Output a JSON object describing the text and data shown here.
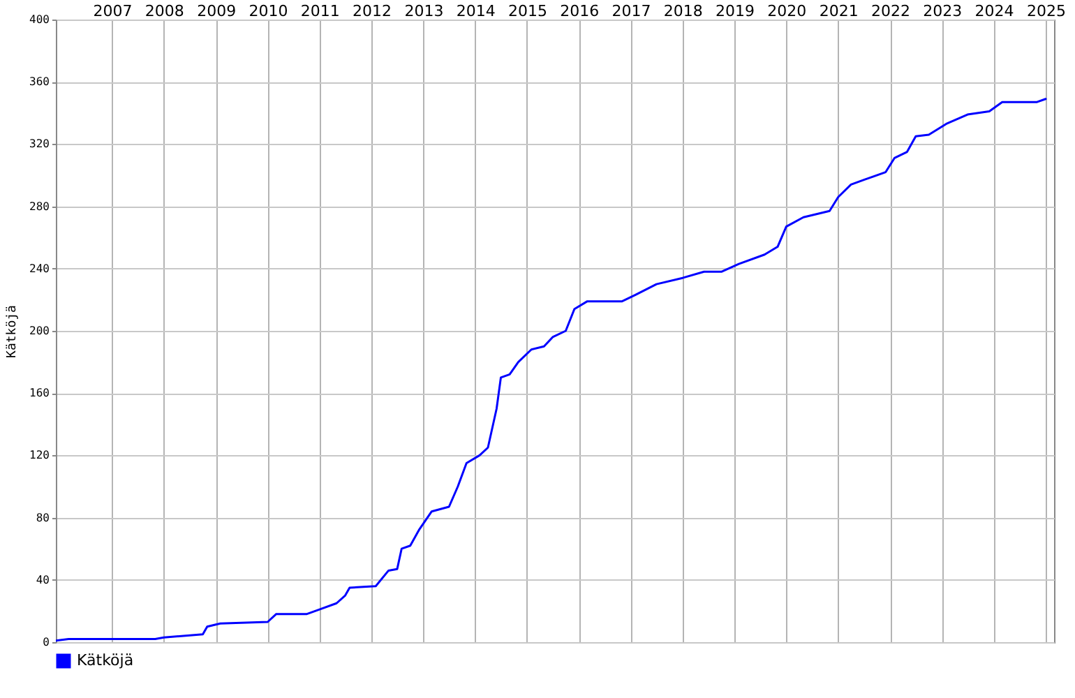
{
  "chart_data": {
    "type": "line",
    "ylabel": "Kätköjä",
    "x": [
      "2005-12",
      "2006-03",
      "2007-11",
      "2008-01",
      "2008-10",
      "2008-11",
      "2009-02",
      "2010-01",
      "2010-03",
      "2010-10",
      "2011-01",
      "2011-05",
      "2011-07",
      "2011-08",
      "2012-02",
      "2012-05",
      "2012-07",
      "2012-08",
      "2012-10",
      "2012-12",
      "2013-03",
      "2013-07",
      "2013-09",
      "2013-11",
      "2014-02",
      "2014-04",
      "2014-06",
      "2014-07",
      "2014-09",
      "2014-11",
      "2015-02",
      "2015-05",
      "2015-07",
      "2015-10",
      "2015-12",
      "2016-03",
      "2016-11",
      "2017-02",
      "2017-07",
      "2018-01",
      "2018-06",
      "2018-10",
      "2019-02",
      "2019-08",
      "2019-11",
      "2020-01",
      "2020-05",
      "2020-11",
      "2021-01",
      "2021-04",
      "2021-07",
      "2021-12",
      "2022-02",
      "2022-05",
      "2022-07",
      "2022-10",
      "2023-02",
      "2023-07",
      "2023-12",
      "2024-03",
      "2024-11",
      "2025-01"
    ],
    "series": [
      {
        "name": "Kätköjä",
        "color": "#0000ff",
        "values": [
          1,
          2,
          2,
          3,
          5,
          10,
          12,
          13,
          18,
          18,
          21,
          25,
          30,
          35,
          36,
          46,
          47,
          60,
          62,
          72,
          84,
          87,
          100,
          115,
          120,
          125,
          150,
          170,
          172,
          180,
          188,
          190,
          196,
          200,
          214,
          219,
          219,
          223,
          230,
          234,
          238,
          238,
          243,
          249,
          254,
          267,
          273,
          277,
          286,
          294,
          297,
          302,
          311,
          315,
          325,
          326,
          333,
          339,
          341,
          347,
          347,
          349
        ]
      }
    ],
    "xlim": [
      "2005-12",
      "2025-03"
    ],
    "xticks": [
      "2007",
      "2008",
      "2009",
      "2010",
      "2011",
      "2012",
      "2013",
      "2014",
      "2015",
      "2016",
      "2017",
      "2018",
      "2019",
      "2020",
      "2021",
      "2022",
      "2023",
      "2024",
      "2025"
    ],
    "ylim": [
      0,
      400
    ],
    "yticks": [
      0,
      40,
      80,
      120,
      160,
      200,
      240,
      280,
      320,
      360,
      400
    ],
    "grid": true,
    "legend": "bottom"
  }
}
